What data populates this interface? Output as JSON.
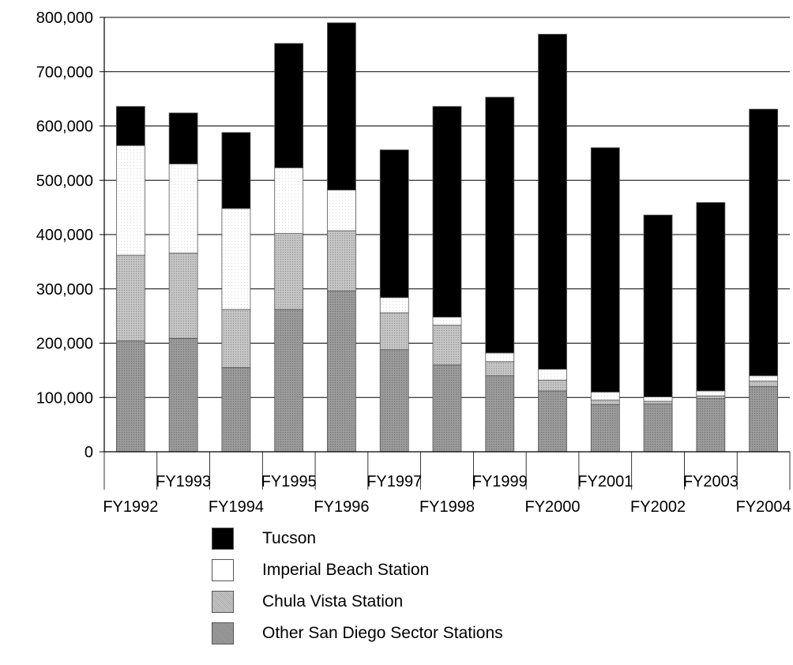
{
  "chart_data": {
    "type": "bar",
    "stacked": true,
    "title": "",
    "xlabel": "",
    "ylabel": "",
    "ylim": [
      0,
      800000
    ],
    "yticks": [
      0,
      100000,
      200000,
      300000,
      400000,
      500000,
      600000,
      700000,
      800000
    ],
    "ytick_labels": [
      "0",
      "100,000",
      "200,000",
      "300,000",
      "400,000",
      "500,000",
      "600,000",
      "700,000",
      "800,000"
    ],
    "grid": true,
    "legend_position": "bottom",
    "categories": [
      "FY1992",
      "FY1993",
      "FY1994",
      "FY1995",
      "FY1996",
      "FY1997",
      "FY1998",
      "FY1999",
      "FY2000",
      "FY2001",
      "FY2002",
      "FY2003",
      "FY2004"
    ],
    "series": [
      {
        "name": "Other San Diego Sector Stations",
        "color": "#8c8c8c",
        "values": [
          204000,
          209000,
          155000,
          262000,
          296000,
          188000,
          160000,
          140000,
          112000,
          87000,
          88000,
          98000,
          120000
        ]
      },
      {
        "name": "Chula Vista Station",
        "color": "#b5b5b5",
        "values": [
          158000,
          157000,
          107000,
          140000,
          111000,
          68000,
          73000,
          26000,
          20000,
          8000,
          5000,
          5000,
          10000
        ]
      },
      {
        "name": "Imperial Beach Station",
        "color": "#ffffff",
        "values": [
          202000,
          164000,
          186000,
          121000,
          75000,
          28000,
          15000,
          16000,
          20000,
          15000,
          8000,
          9000,
          10000
        ]
      },
      {
        "name": "Tucson",
        "color": "#000000",
        "values": [
          72000,
          94000,
          140000,
          229000,
          308000,
          272000,
          388000,
          471000,
          617000,
          450000,
          335000,
          347000,
          491000
        ]
      }
    ]
  }
}
